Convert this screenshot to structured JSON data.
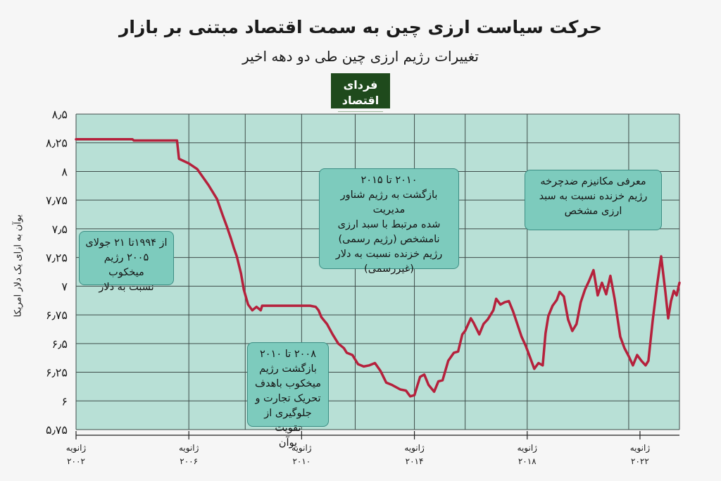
{
  "title": "حرکت سیاست ارزی چین به سمت اقتصاد مبتنی بر بازار",
  "subtitle": "تغییرات رژیم ارزی چین طی دو دهه اخیر",
  "logo": {
    "text": "فردای اقتصاد"
  },
  "colors": {
    "plot_bg": "#b8e0d6",
    "line": "#b5213c",
    "box_fill": "#7dcbbd",
    "box_border": "#3c8e84",
    "logo_bg": "#1f4a1c"
  },
  "annotations": [
    {
      "id": "peg",
      "lines": [
        "از ۱۹۹۴تا ۲۱ جولای",
        "۲۰۰۵ رژیم میخکوب",
        "نسبت به دلار"
      ]
    },
    {
      "id": "repeg",
      "lines": [
        "۲۰۰۸ تا ۲۰۱۰",
        "بازگشت رژیم",
        "میخکوب باهدف",
        "تحریک تجارت و",
        "جلوگیری از تقویت",
        "یوآن"
      ]
    },
    {
      "id": "managed",
      "lines": [
        "۲۰۱۰ تا ۲۰۱۵",
        "بازگشت به رژیم شناور مدیریت",
        "شده مرتبط با سبد ارزی",
        "نامشخص (رژیم رسمی)",
        "رژیم خزنده نسبت به دلار",
        "(غیررسمی)"
      ]
    },
    {
      "id": "countercyclical",
      "lines": [
        "معرفی مکانیزم ضدچرخه",
        "رژیم خزنده نسبت به سبد",
        "ارزی مشخص"
      ]
    }
  ],
  "chart_data": {
    "type": "line",
    "title": "حرکت سیاست ارزی چین به سمت اقتصاد مبتنی بر بازار",
    "subtitle": "تغییرات رژیم ارزی چین طی دو دهه اخیر",
    "xlabel": "",
    "ylabel": "یوآن به ازای یک دلار امریکا",
    "ylim": [
      5.75,
      8.5
    ],
    "xlim": [
      2002.0,
      2023.4
    ],
    "grid": true,
    "y_ticks": [
      5.75,
      6,
      6.25,
      6.5,
      6.75,
      7,
      7.25,
      7.5,
      7.75,
      8,
      8.25,
      8.5
    ],
    "y_tick_labels": [
      "۵٫۷۵",
      "۶",
      "۶٫۲۵",
      "۶٫۵",
      "۶٫۷۵",
      "۷",
      "۷٫۲۵",
      "۷٫۵",
      "۷٫۷۵",
      "۸",
      "۸٫۲۵",
      "۸٫۵"
    ],
    "x_ticks": [
      {
        "value": 2002,
        "month": "ژانویه",
        "year": "۲۰۰۲"
      },
      {
        "value": 2006,
        "month": "ژانویه",
        "year": "۲۰۰۶"
      },
      {
        "value": 2010,
        "month": "ژانویه",
        "year": "۲۰۱۰"
      },
      {
        "value": 2014,
        "month": "ژانویه",
        "year": "۲۰۱۴"
      },
      {
        "value": 2018,
        "month": "ژانویه",
        "year": "۲۰۱۸"
      },
      {
        "value": 2022,
        "month": "ژانویه",
        "year": "۲۰۲۲"
      }
    ],
    "x_gridlines": [
      2002,
      2006,
      2008,
      2010,
      2011.9,
      2014,
      2015.8,
      2018,
      2021.6,
      2023.4
    ],
    "series": [
      {
        "x": [
          2002.0,
          2004.0,
          2004.05,
          2005.55,
          2005.58,
          2005.65,
          2006.0,
          2006.3,
          2006.7,
          2007.0,
          2007.2,
          2007.35,
          2007.5,
          2007.6,
          2007.7,
          2007.85,
          2007.95,
          2008.1,
          2008.25,
          2008.4,
          2008.55,
          2008.6,
          2008.7,
          2009.0,
          2009.5,
          2010.0,
          2010.3,
          2010.5,
          2010.6,
          2010.7,
          2010.9,
          2011.1,
          2011.3,
          2011.5,
          2011.6,
          2011.8,
          2012.0,
          2012.2,
          2012.4,
          2012.6,
          2012.8,
          2013.0,
          2013.2,
          2013.5,
          2013.7,
          2013.85,
          2014.0,
          2014.2,
          2014.35,
          2014.5,
          2014.7,
          2014.85,
          2015.0,
          2015.2,
          2015.4,
          2015.55,
          2015.7,
          2015.8,
          2016.0,
          2016.1,
          2016.3,
          2016.45,
          2016.6,
          2016.8,
          2016.9,
          2017.05,
          2017.2,
          2017.35,
          2017.5,
          2017.65,
          2017.8,
          2017.95,
          2018.1,
          2018.25,
          2018.4,
          2018.55,
          2018.65,
          2018.75,
          2018.9,
          2019.05,
          2019.15,
          2019.3,
          2019.45,
          2019.6,
          2019.75,
          2019.9,
          2020.05,
          2020.2,
          2020.35,
          2020.5,
          2020.65,
          2020.8,
          2020.95,
          2021.1,
          2021.3,
          2021.45,
          2021.6,
          2021.75,
          2021.9,
          2022.05,
          2022.2,
          2022.3,
          2022.45,
          2022.6,
          2022.75,
          2022.9,
          2023.0,
          2023.1,
          2023.2,
          2023.3,
          2023.4
        ],
        "y": [
          8.28,
          8.28,
          8.27,
          8.27,
          8.27,
          8.11,
          8.07,
          8.02,
          7.88,
          7.76,
          7.62,
          7.52,
          7.41,
          7.33,
          7.26,
          7.11,
          6.97,
          6.84,
          6.79,
          6.82,
          6.79,
          6.83,
          6.83,
          6.83,
          6.83,
          6.83,
          6.83,
          6.82,
          6.79,
          6.73,
          6.67,
          6.58,
          6.5,
          6.46,
          6.42,
          6.4,
          6.32,
          6.3,
          6.31,
          6.33,
          6.26,
          6.16,
          6.14,
          6.1,
          6.09,
          6.04,
          6.05,
          6.21,
          6.23,
          6.14,
          6.08,
          6.17,
          6.18,
          6.35,
          6.42,
          6.43,
          6.58,
          6.61,
          6.72,
          6.68,
          6.58,
          6.67,
          6.71,
          6.79,
          6.89,
          6.84,
          6.86,
          6.87,
          6.78,
          6.67,
          6.56,
          6.48,
          6.38,
          6.28,
          6.33,
          6.31,
          6.59,
          6.74,
          6.83,
          6.88,
          6.95,
          6.91,
          6.71,
          6.61,
          6.67,
          6.86,
          6.97,
          7.05,
          7.14,
          6.92,
          7.03,
          6.93,
          7.09,
          6.89,
          6.56,
          6.46,
          6.39,
          6.31,
          6.4,
          6.35,
          6.31,
          6.35,
          6.7,
          7.0,
          7.26,
          6.95,
          6.72,
          6.87,
          6.96,
          6.92,
          7.03
        ]
      }
    ]
  }
}
